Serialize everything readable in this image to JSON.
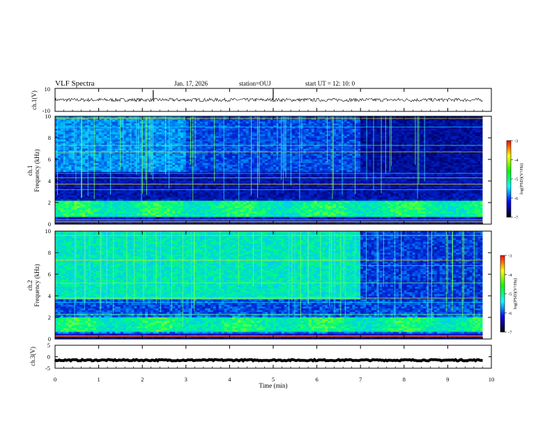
{
  "header": {
    "title": "VLF Spectra",
    "date": "Jan. 17, 2026",
    "station": "station=OUJ",
    "start": "start  UT =   12: 10: 0"
  },
  "chart_data": [
    {
      "type": "line",
      "panel": "ch1-waveform",
      "ylabel": "ch.1(V)",
      "ylim": [
        -10,
        10
      ],
      "yticks": [
        "10",
        "-10"
      ],
      "x_range_min": [
        0,
        9.8
      ],
      "trace_level_V": 0,
      "trace_amplitude_V": 1.5,
      "spikes_at_min": [
        2.25,
        5.0
      ]
    },
    {
      "type": "heatmap",
      "panel": "ch1-spectrogram",
      "ylabel_channel": "ch.1",
      "ylabel_unit": "Frequency (kHz)",
      "ylim": [
        0,
        10
      ],
      "yticks": [
        "0",
        "2",
        "4",
        "6",
        "8",
        "10"
      ],
      "colorbar": {
        "label": "log(PSD)(V²/Hz)",
        "range": [
          -7,
          -3
        ],
        "ticks": [
          "-3",
          "-4",
          "-5",
          "-6",
          "-7"
        ],
        "colors": [
          "#ff0000",
          "#ffff00",
          "#00ff00",
          "#00ffff",
          "#0000ff",
          "#000000"
        ]
      },
      "background_change_min": 3.0,
      "upper_band_fade_min": 7.0,
      "band_kHz": [
        0.7,
        2.2
      ],
      "tones_kHz": [
        0.2,
        0.4,
        3.2,
        3.7,
        4.3,
        4.7,
        6.7,
        7.3,
        9.0,
        9.8
      ]
    },
    {
      "type": "heatmap",
      "panel": "ch2-spectrogram",
      "ylabel_channel": "ch.2",
      "ylabel_unit": "Frequency (kHz)",
      "ylim": [
        0,
        10
      ],
      "yticks": [
        "0",
        "2",
        "4",
        "6",
        "8",
        "10"
      ],
      "colorbar": {
        "label": "log(PSD)(V²/Hz)",
        "range": [
          -7,
          -3
        ],
        "ticks": [
          "-3",
          "-4",
          "-5",
          "-6",
          "-7"
        ],
        "colors": [
          "#ff0000",
          "#ffff00",
          "#00ff00",
          "#00ffff",
          "#0000ff",
          "#000000"
        ]
      },
      "quiet_after_min": 7.0,
      "band_kHz": [
        0.7,
        2.0
      ],
      "tones_kHz": [
        0.3,
        2.3,
        3.4,
        3.8,
        5.2,
        6.8,
        7.3,
        9.6
      ]
    },
    {
      "type": "line",
      "panel": "ch3-waveform",
      "ylabel": "ch.3(V)",
      "ylim": [
        -5,
        5
      ],
      "yticks": [
        "5",
        "0",
        "-5"
      ],
      "x_range_min": [
        0,
        9.8
      ],
      "trace_level_V": -1.5,
      "trace_amplitude_V": 0.3
    },
    {
      "type": "axis",
      "panel": "time-axis",
      "xlabel": "Time (min)",
      "xlim": [
        0,
        10
      ],
      "xticks": [
        "0",
        "1",
        "2",
        "3",
        "4",
        "5",
        "6",
        "7",
        "8",
        "9",
        "10"
      ]
    }
  ]
}
